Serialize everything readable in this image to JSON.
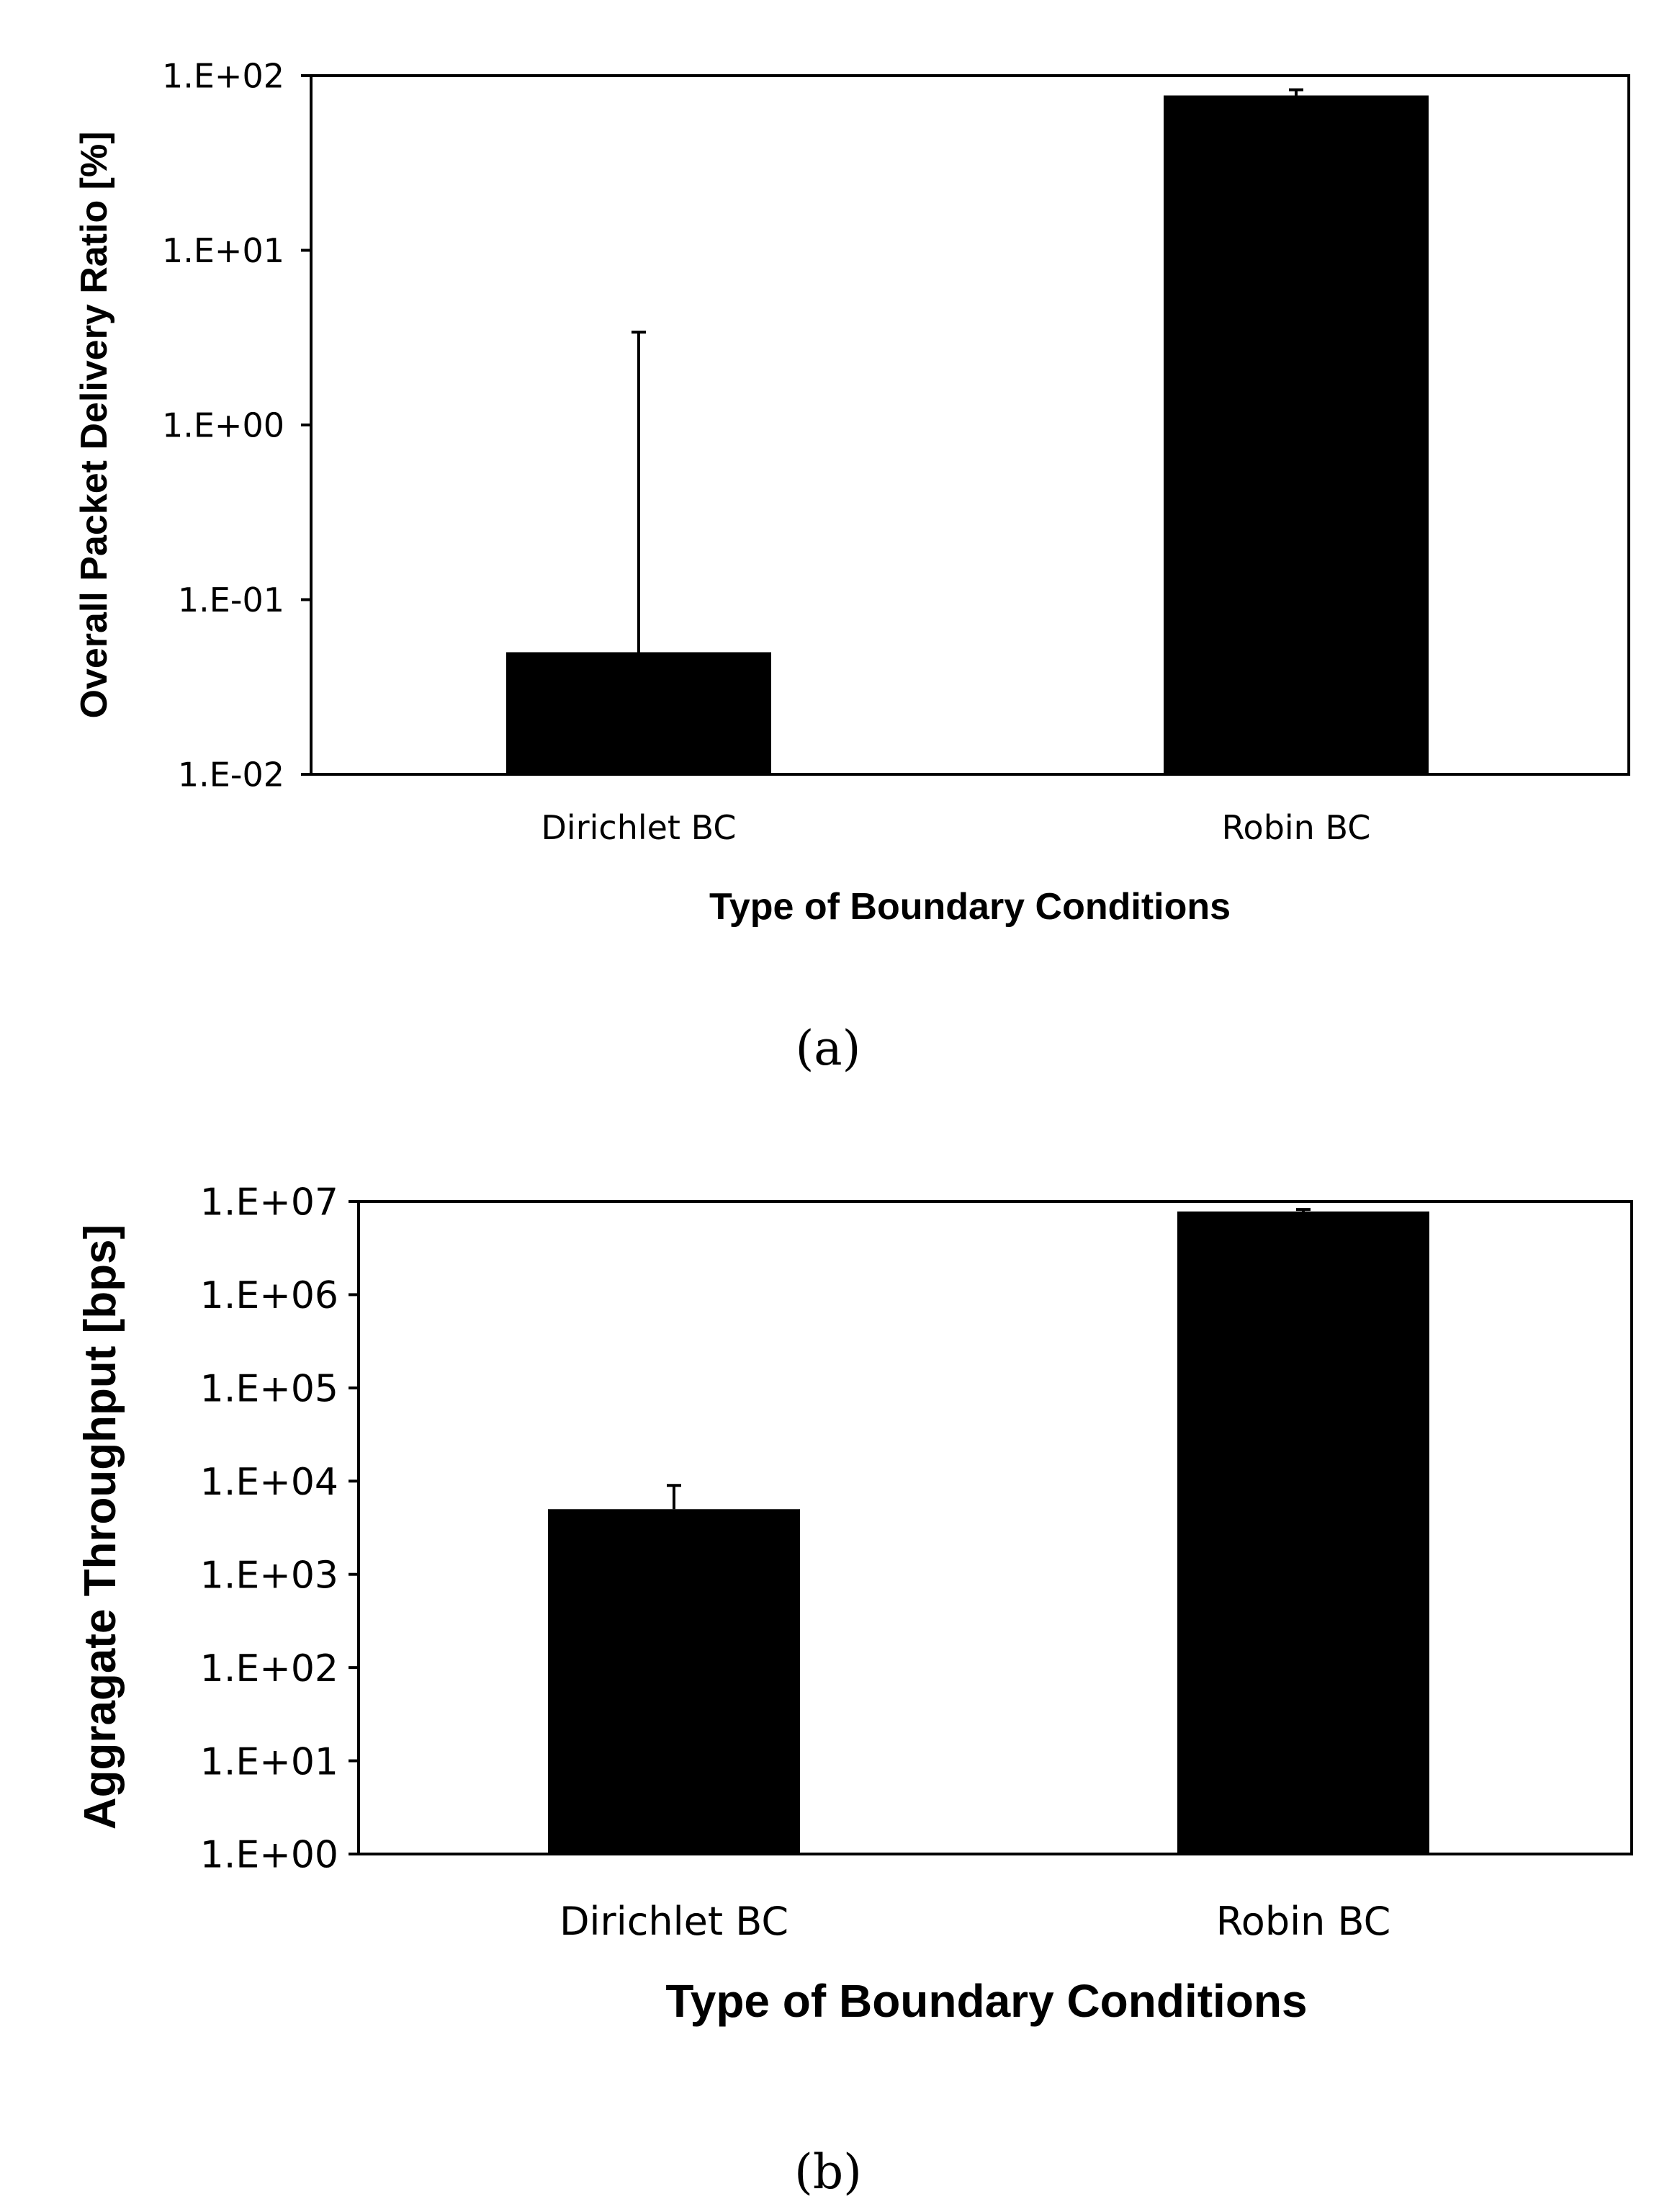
{
  "chart_data": [
    {
      "type": "bar",
      "panel_label": "(a)",
      "yscale": "log",
      "ylim": [
        0.01,
        100
      ],
      "ytick_labels": [
        "1.E-02",
        "1.E-01",
        "1.E+00",
        "1.E+01",
        "1.E+02"
      ],
      "ylabel": "Overall Packet Delivery Ratio [%]",
      "xlabel": "Type of Boundary Conditions",
      "categories": [
        "Dirichlet BC",
        "Robin BC"
      ],
      "values": [
        0.05,
        77
      ],
      "error_upper": [
        3.4,
        83
      ],
      "bar_color": "#000000"
    },
    {
      "type": "bar",
      "panel_label": "(b)",
      "yscale": "log",
      "ylim": [
        1,
        10000000
      ],
      "ytick_labels": [
        "1.E+00",
        "1.E+01",
        "1.E+02",
        "1.E+03",
        "1.E+04",
        "1.E+05",
        "1.E+06",
        "1.E+07"
      ],
      "ylabel": "Aggragate Throughput [bps]",
      "xlabel": "Type of Boundary Conditions",
      "categories": [
        "Dirichlet BC",
        "Robin BC"
      ],
      "values": [
        5000,
        7800000
      ],
      "error_upper": [
        9000,
        8200000
      ],
      "bar_color": "#000000"
    }
  ]
}
